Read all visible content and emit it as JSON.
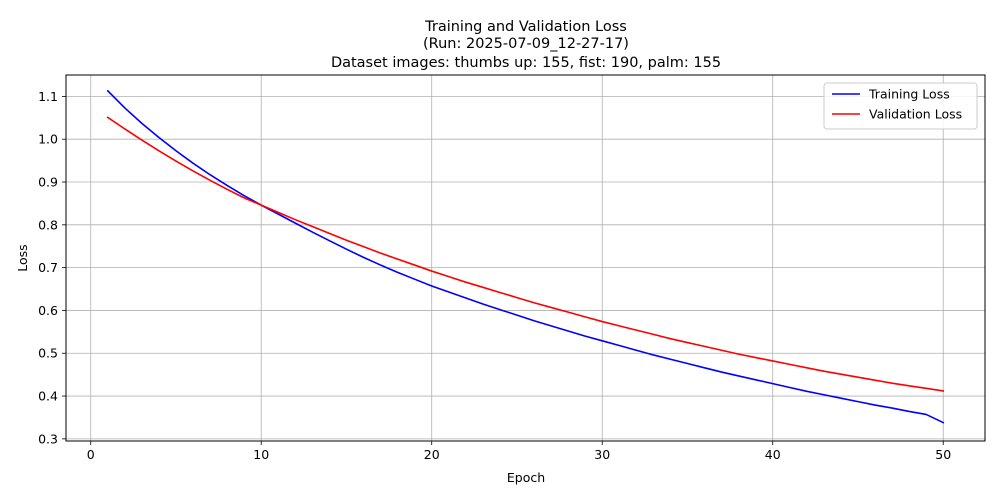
{
  "chart_data": {
    "type": "line",
    "title_lines": [
      "Training and Validation Loss",
      "(Run: 2025-07-09_12-27-17)",
      "Dataset images: thumbs up: 155, fist: 190, palm: 155"
    ],
    "xlabel": "Epoch",
    "ylabel": "Loss",
    "xlim": [
      -1.45,
      52.45
    ],
    "ylim": [
      0.295,
      1.15
    ],
    "xticks": [
      0,
      10,
      20,
      30,
      40,
      50
    ],
    "yticks": [
      0.3,
      0.4,
      0.5,
      0.6,
      0.7,
      0.8,
      0.9,
      1.0,
      1.1
    ],
    "grid": true,
    "legend_position": "top-right",
    "series": [
      {
        "name": "Training Loss",
        "color": "#0000ff",
        "x": [
          1,
          2,
          3,
          4,
          5,
          6,
          7,
          8,
          9,
          10,
          11,
          12,
          13,
          14,
          15,
          16,
          17,
          18,
          19,
          20,
          21,
          22,
          23,
          24,
          25,
          26,
          27,
          28,
          29,
          30,
          31,
          32,
          33,
          34,
          35,
          36,
          37,
          38,
          39,
          40,
          41,
          42,
          43,
          44,
          45,
          46,
          47,
          48,
          49,
          50
        ],
        "values": [
          1.113,
          1.073,
          1.037,
          1.004,
          0.973,
          0.944,
          0.917,
          0.892,
          0.868,
          0.846,
          0.825,
          0.804,
          0.783,
          0.763,
          0.743,
          0.724,
          0.706,
          0.689,
          0.673,
          0.657,
          0.643,
          0.629,
          0.615,
          0.602,
          0.589,
          0.576,
          0.564,
          0.552,
          0.54,
          0.529,
          0.518,
          0.507,
          0.496,
          0.486,
          0.476,
          0.466,
          0.456,
          0.447,
          0.438,
          0.429,
          0.42,
          0.411,
          0.403,
          0.395,
          0.387,
          0.379,
          0.372,
          0.364,
          0.357,
          0.338
        ]
      },
      {
        "name": "Validation Loss",
        "color": "#ff0000",
        "x": [
          1,
          2,
          3,
          4,
          5,
          6,
          7,
          8,
          9,
          10,
          11,
          12,
          13,
          14,
          15,
          16,
          17,
          18,
          19,
          20,
          21,
          22,
          23,
          24,
          25,
          26,
          27,
          28,
          29,
          30,
          31,
          32,
          33,
          34,
          35,
          36,
          37,
          38,
          39,
          40,
          41,
          42,
          43,
          44,
          45,
          46,
          47,
          48,
          49,
          50
        ],
        "values": [
          1.051,
          1.024,
          0.998,
          0.973,
          0.949,
          0.926,
          0.904,
          0.883,
          0.863,
          0.846,
          0.829,
          0.812,
          0.796,
          0.78,
          0.764,
          0.749,
          0.734,
          0.72,
          0.706,
          0.692,
          0.679,
          0.666,
          0.654,
          0.642,
          0.63,
          0.618,
          0.607,
          0.596,
          0.585,
          0.574,
          0.564,
          0.554,
          0.544,
          0.534,
          0.525,
          0.516,
          0.507,
          0.498,
          0.49,
          0.482,
          0.474,
          0.466,
          0.458,
          0.451,
          0.444,
          0.437,
          0.43,
          0.424,
          0.418,
          0.412
        ]
      }
    ]
  }
}
